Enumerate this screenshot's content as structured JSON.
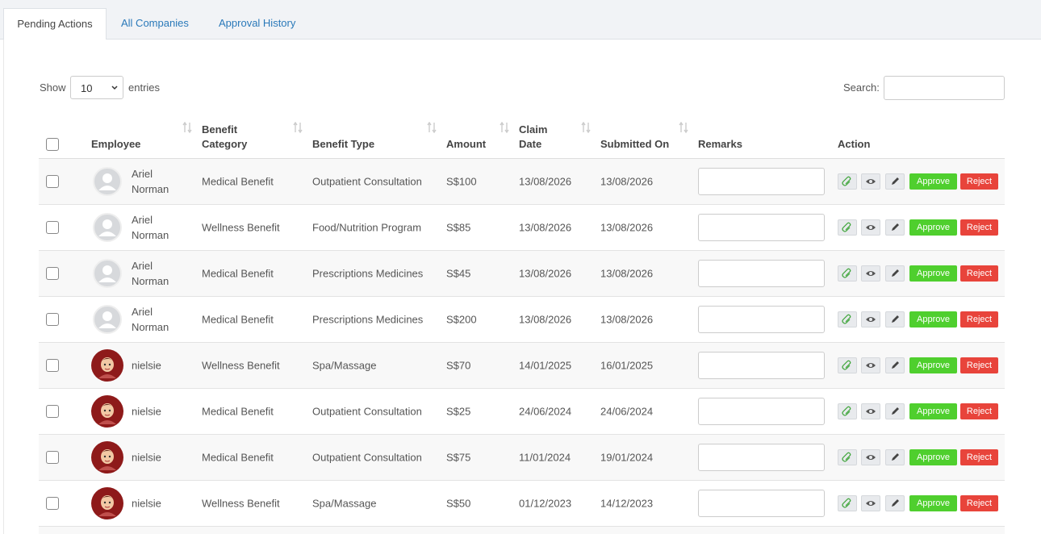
{
  "tabs": [
    "Pending Actions",
    "All Companies",
    "Approval History"
  ],
  "length_control": {
    "before": "Show",
    "value": "10",
    "after": "entries"
  },
  "search": {
    "label": "Search:"
  },
  "table": {
    "headers": [
      "Employee",
      "Benefit Category",
      "Benefit Type",
      "Amount",
      "Claim Date",
      "Submitted On",
      "Remarks",
      "Action"
    ],
    "actions": [
      "Approve",
      "Reject"
    ],
    "rows": [
      [
        "Ariel Norman",
        "Medical Benefit",
        "Outpatient Consultation",
        "S$100",
        "13/08/2026",
        "13/08/2026"
      ],
      [
        "Ariel Norman",
        "Wellness Benefit",
        "Food/Nutrition Program",
        "S$85",
        "13/08/2026",
        "13/08/2026"
      ],
      [
        "Ariel Norman",
        "Medical Benefit",
        "Prescriptions Medicines",
        "S$45",
        "13/08/2026",
        "13/08/2026"
      ],
      [
        "Ariel Norman",
        "Medical Benefit",
        "Prescriptions Medicines",
        "S$200",
        "13/08/2026",
        "13/08/2026"
      ],
      [
        "nielsie",
        "Wellness Benefit",
        "Spa/Massage",
        "S$70",
        "14/01/2025",
        "16/01/2025"
      ],
      [
        "nielsie",
        "Medical Benefit",
        "Outpatient Consultation",
        "S$25",
        "24/06/2024",
        "24/06/2024"
      ],
      [
        "nielsie",
        "Medical Benefit",
        "Outpatient Consultation",
        "S$75",
        "11/01/2024",
        "19/01/2024"
      ],
      [
        "nielsie",
        "Wellness Benefit",
        "Spa/Massage",
        "S$50",
        "01/12/2023",
        "14/12/2023"
      ]
    ]
  }
}
